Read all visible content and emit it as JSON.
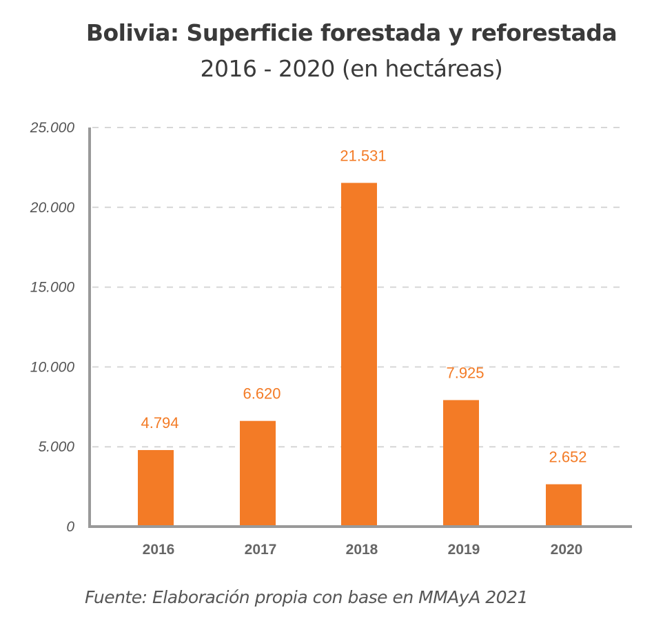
{
  "chart_data": {
    "type": "bar",
    "title": "Bolivia: Superficie forestada y reforestada",
    "subtitle": "2016 - 2020 (en hectáreas)",
    "xlabel": "",
    "ylabel": "",
    "categories": [
      "2016",
      "2017",
      "2018",
      "2019",
      "2020"
    ],
    "values": [
      4794,
      6620,
      21531,
      7925,
      2652
    ],
    "data_labels": [
      "4.794",
      "6.620",
      "21.531",
      "7.925",
      "2.652"
    ],
    "ylim": [
      0,
      25000
    ],
    "yticks": [
      0,
      5000,
      10000,
      15000,
      20000,
      25000
    ],
    "ytick_labels": [
      "0",
      "5.000",
      "10.000",
      "15.000",
      "20.000",
      "25.000"
    ],
    "grid": true,
    "bar_color": "#f37b26",
    "source": "Fuente: Elaboración propia con base en MMAyA 2021"
  }
}
